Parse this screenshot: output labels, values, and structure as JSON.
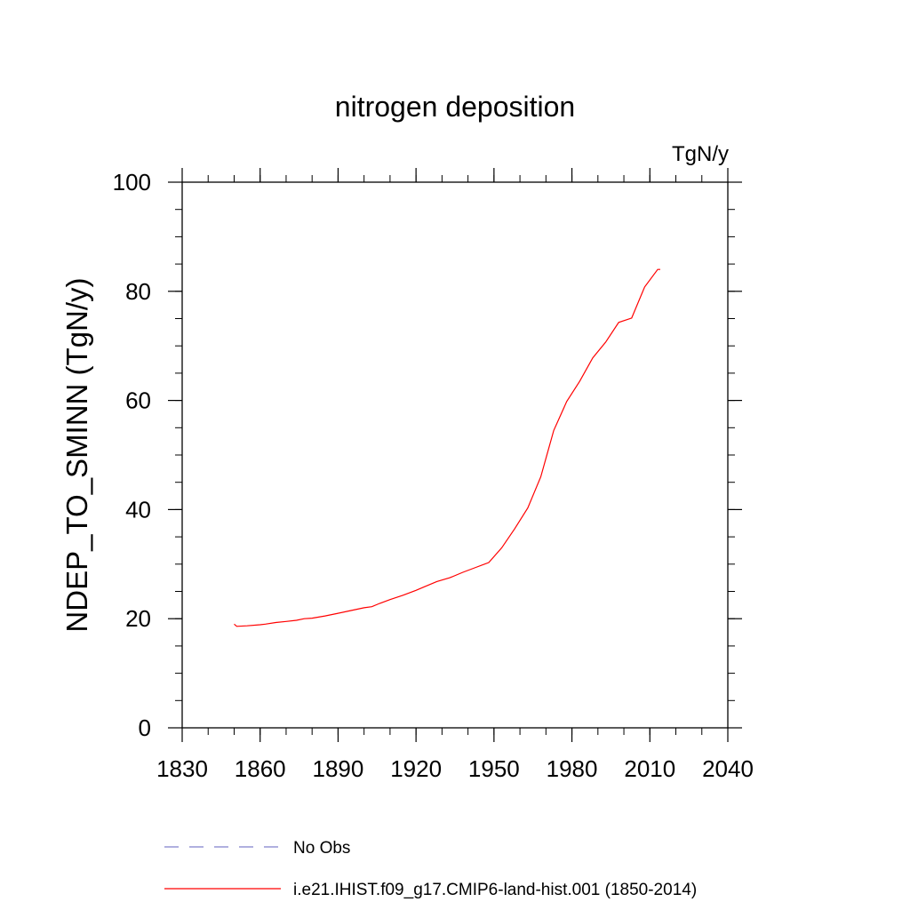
{
  "chart_data": {
    "type": "line",
    "title": "nitrogen deposition",
    "units_label": "TgN/y",
    "ylabel": "NDEP_TO_SMINN  (TgN/y)",
    "xlabel": "",
    "xlim": [
      1830,
      2040
    ],
    "ylim": [
      0,
      100
    ],
    "x_ticks": [
      1830,
      1860,
      1890,
      1920,
      1950,
      1980,
      2010,
      2040
    ],
    "x_minor_step": 10,
    "y_ticks": [
      0,
      20,
      40,
      60,
      80,
      100
    ],
    "y_minor_step": 5,
    "grid": false,
    "legend_placement": "below",
    "series": [
      {
        "name": "i.e21.IHIST.f09_g17.CMIP6-land-hist.001 (1850-2014)",
        "color": "#ff0000",
        "style": "solid",
        "x": [
          1850,
          1851,
          1855,
          1860,
          1862,
          1866,
          1870,
          1874,
          1877,
          1880,
          1885,
          1890,
          1895,
          1900,
          1903,
          1906,
          1910,
          1915,
          1920,
          1923,
          1928,
          1933,
          1938,
          1943,
          1948,
          1953,
          1958,
          1963,
          1968,
          1973,
          1978,
          1983,
          1988,
          1993,
          1998,
          2003,
          2008,
          2013,
          2014
        ],
        "y": [
          19.0,
          18.6,
          18.7,
          18.9,
          19.0,
          19.3,
          19.5,
          19.7,
          20.0,
          20.1,
          20.5,
          21.0,
          21.5,
          22.0,
          22.2,
          22.8,
          23.5,
          24.3,
          25.2,
          25.8,
          26.8,
          27.5,
          28.5,
          29.4,
          30.3,
          33.0,
          36.5,
          40.3,
          46.0,
          54.5,
          59.8,
          63.5,
          67.8,
          70.7,
          74.3,
          75.1,
          80.8,
          84.0,
          84.0
        ]
      },
      {
        "name": "No Obs",
        "color": "#8080cc",
        "style": "dashed",
        "x": [],
        "y": []
      }
    ]
  }
}
